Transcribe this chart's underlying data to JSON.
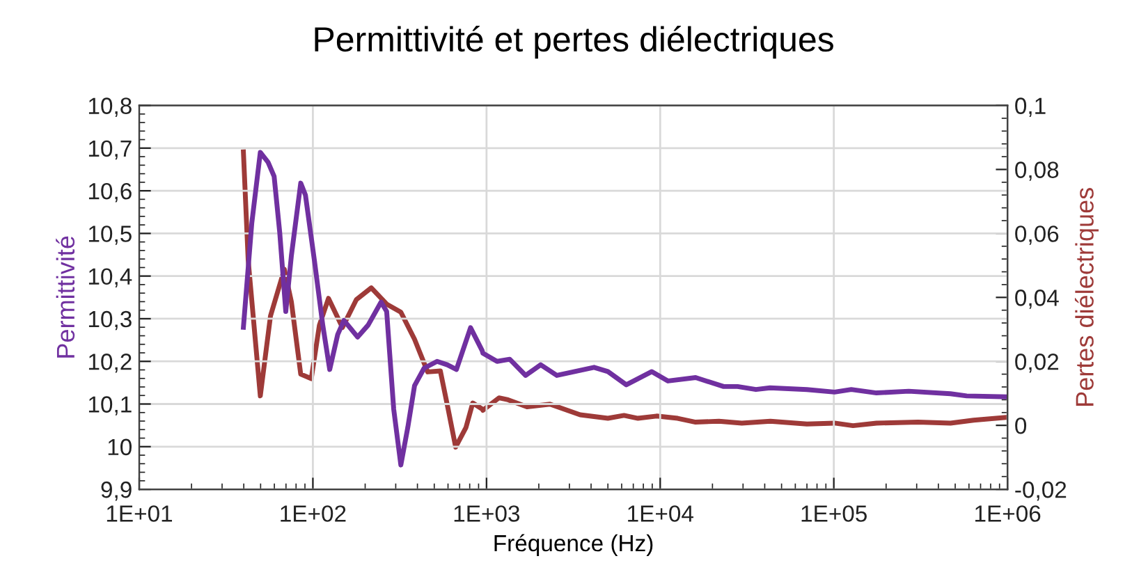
{
  "chart_data": {
    "type": "line",
    "title": "Permittivité et pertes diélectriques",
    "xlabel": "Fréquence (Hz)",
    "ylabel": "Permittivité",
    "y2label": "Pertes diélectriques",
    "log": "x",
    "grid": true,
    "marker": "none",
    "line_style": "solid",
    "xlim": [
      10,
      1000000
    ],
    "xticks": [
      {
        "value": 10,
        "label": "1E+01"
      },
      {
        "value": 100,
        "label": "1E+02"
      },
      {
        "value": 1000,
        "label": "1E+03"
      },
      {
        "value": 10000,
        "label": "1E+04"
      },
      {
        "value": 100000,
        "label": "1E+05"
      },
      {
        "value": 1000000,
        "label": "1E+06"
      }
    ],
    "ylim": [
      9.9,
      10.8
    ],
    "yticks": [
      {
        "value": 9.9,
        "label": "9,9"
      },
      {
        "value": 10,
        "label": "10"
      },
      {
        "value": 10.1,
        "label": "10,1"
      },
      {
        "value": 10.2,
        "label": "10,2"
      },
      {
        "value": 10.3,
        "label": "10,3"
      },
      {
        "value": 10.4,
        "label": "10,4"
      },
      {
        "value": 10.5,
        "label": "10,5"
      },
      {
        "value": 10.6,
        "label": "10,6"
      },
      {
        "value": 10.7,
        "label": "10,7"
      },
      {
        "value": 10.8,
        "label": "10,8"
      }
    ],
    "y2lim": [
      -0.02,
      0.1
    ],
    "y2ticks": [
      {
        "value": -0.02,
        "label": "-0,02"
      },
      0,
      {
        "value": 0.02,
        "label": "0,02"
      },
      {
        "value": 0.04,
        "label": "0,04"
      },
      {
        "value": 0.06,
        "label": "0,06"
      },
      {
        "value": 0.08,
        "label": "0,08"
      },
      {
        "value": 0.1,
        "label": "0,1"
      }
    ],
    "series": [
      {
        "color": "#7030a0",
        "x": [
          39.8,
          44.5,
          49.8,
          55.2,
          59.8,
          64.4,
          69.8,
          75.2,
          85.1,
          90.6,
          102,
          114,
          125,
          139,
          151,
          181,
          208,
          247,
          266,
          292,
          321,
          352,
          385,
          437,
          519,
          594,
          671,
          809,
          944,
          953,
          1150,
          1360,
          1680,
          2050,
          2540,
          4160,
          5000,
          6380,
          8950,
          11100,
          16000,
          23200,
          27900,
          35600,
          42900,
          70000,
          101000,
          126000,
          176000,
          270000,
          470000,
          582000,
          982000
        ],
        "values": [
          10.28,
          10.525,
          10.69,
          10.667,
          10.634,
          10.503,
          10.317,
          10.448,
          10.618,
          10.59,
          10.437,
          10.285,
          10.181,
          10.263,
          10.296,
          10.257,
          10.285,
          10.339,
          10.317,
          10.088,
          9.957,
          10.045,
          10.143,
          10.184,
          10.2,
          10.192,
          10.181,
          10.279,
          10.225,
          10.219,
          10.2,
          10.205,
          10.167,
          10.192,
          10.167,
          10.186,
          10.176,
          10.145,
          10.176,
          10.154,
          10.162,
          10.141,
          10.141,
          10.134,
          10.138,
          10.134,
          10.128,
          10.134,
          10.126,
          10.13,
          10.124,
          10.119,
          10.117
        ]
      },
      {
        "color": "#9e3a38",
        "axis": "y2",
        "x": [
          39.8,
          42.4,
          49.8,
          57.0,
          68.5,
          75.2,
          85.1,
          97.9,
          109,
          123,
          148,
          178,
          217,
          266,
          321,
          385,
          458,
          542,
          601,
          664,
          761,
          833,
          944,
          953,
          1180,
          1330,
          1710,
          2320,
          3460,
          5000,
          6190,
          7450,
          9530,
          12600,
          16000,
          21800,
          29500,
          43100,
          70000,
          101000,
          129000,
          176000,
          305000,
          470000,
          638000,
          982000
        ],
        "values": [
          0.0855,
          0.0517,
          0.0092,
          0.0342,
          0.0488,
          0.0386,
          0.016,
          0.0146,
          0.0313,
          0.0397,
          0.0306,
          0.0393,
          0.043,
          0.0379,
          0.0354,
          0.0269,
          0.0167,
          0.017,
          0.0051,
          -0.0068,
          -0.0007,
          0.007,
          0.0051,
          0.0047,
          0.0086,
          0.008,
          0.0058,
          0.0066,
          0.0033,
          0.0022,
          0.0031,
          0.0022,
          0.0029,
          0.0022,
          0.001,
          0.0013,
          0.0007,
          0.0013,
          0.0004,
          0.0007,
          -0.0001,
          0.0007,
          0.001,
          0.0007,
          0.0016,
          0.0025
        ]
      }
    ]
  }
}
